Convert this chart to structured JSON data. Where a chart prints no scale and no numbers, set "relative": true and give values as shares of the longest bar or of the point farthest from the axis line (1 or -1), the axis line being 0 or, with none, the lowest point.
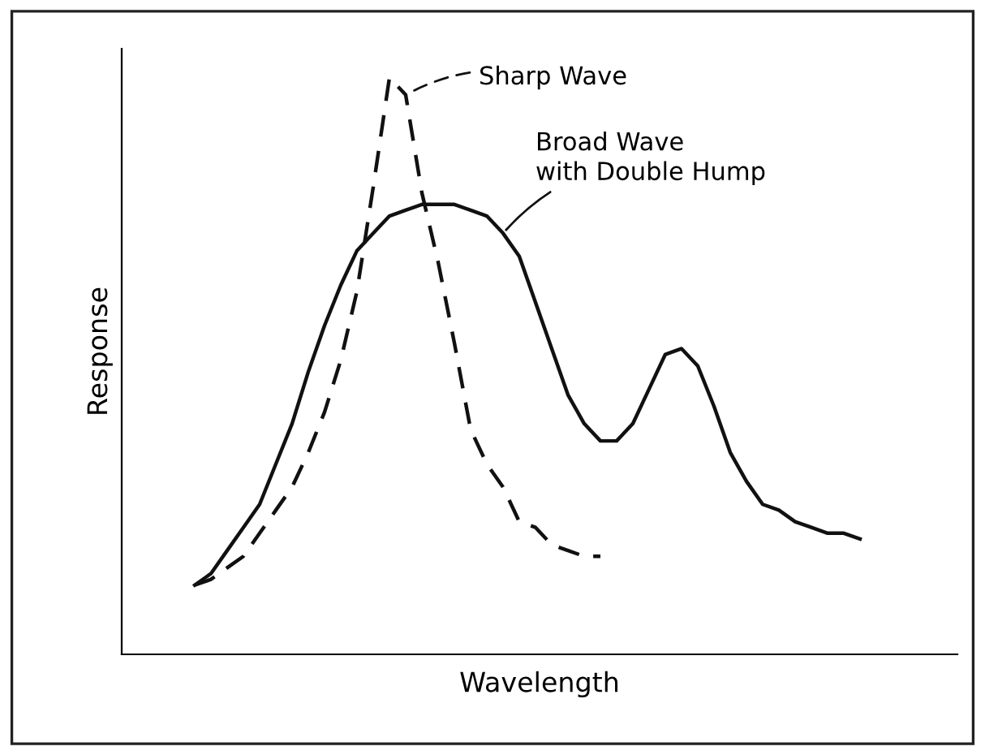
{
  "chart_data": {
    "type": "line",
    "relative": true,
    "xlabel": "Wavelength",
    "ylabel": "Response",
    "categories": [
      null,
      null,
      null,
      null,
      null,
      null,
      null,
      null,
      null,
      null,
      null,
      null,
      null,
      null,
      null,
      null,
      null,
      null,
      null,
      null,
      null,
      null,
      null,
      null,
      null,
      null,
      null,
      null,
      null,
      null,
      null,
      null,
      null,
      null,
      null,
      null,
      null,
      null,
      null,
      null,
      null,
      null
    ],
    "series": [
      {
        "name": "Sharp Wave",
        "color": "#111111",
        "line_style": "dashed",
        "values": [
          0.12,
          0.13,
          0.15,
          0.17,
          0.21,
          0.25,
          0.29,
          0.35,
          0.42,
          0.51,
          0.63,
          0.81,
          1.0,
          0.97,
          0.8,
          0.68,
          0.54,
          0.39,
          0.33,
          0.29,
          0.23,
          0.22,
          0.19,
          0.18,
          0.17,
          0.17,
          null,
          null,
          null,
          null,
          null,
          null,
          null,
          null,
          null,
          null,
          null,
          null,
          null,
          null,
          null,
          null
        ]
      },
      {
        "name": "Broad Wave\nwith Double Hump",
        "color": "#111111",
        "line_style": "solid",
        "values": [
          0.12,
          0.14,
          0.18,
          0.22,
          0.26,
          0.33,
          0.4,
          0.49,
          0.57,
          0.64,
          0.7,
          0.73,
          0.76,
          0.77,
          0.78,
          0.78,
          0.78,
          0.77,
          0.76,
          0.73,
          0.69,
          0.61,
          0.53,
          0.45,
          0.4,
          0.37,
          0.37,
          0.4,
          0.46,
          0.52,
          0.53,
          0.5,
          0.43,
          0.35,
          0.3,
          0.26,
          0.25,
          0.23,
          0.22,
          0.21,
          0.21,
          0.2
        ]
      }
    ],
    "grid": false
  }
}
